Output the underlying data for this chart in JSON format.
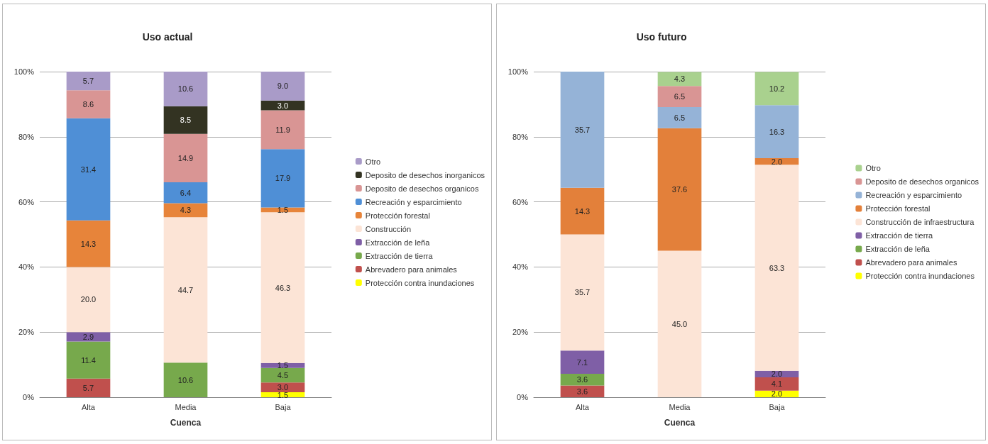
{
  "chart_data": [
    {
      "type": "bar",
      "title": "Uso actual",
      "xlabel": "Cuenca",
      "categories": [
        "Alta",
        "Media",
        "Baja"
      ],
      "stacked": true,
      "ylim": [
        0,
        100
      ],
      "yticks": [
        {
          "value": 0,
          "label": "0%"
        },
        {
          "value": 20,
          "label": "20%"
        },
        {
          "value": 40,
          "label": "40%"
        },
        {
          "value": 60,
          "label": "60%"
        },
        {
          "value": 80,
          "label": "80%"
        },
        {
          "value": 100,
          "label": "100%"
        }
      ],
      "grid": "y",
      "legend": "right",
      "series": [
        {
          "name": "Protección contra inundaciones",
          "color": "#ffff00",
          "values": [
            null,
            null,
            1.5
          ],
          "value_labels": [
            null,
            null,
            "1.5"
          ]
        },
        {
          "name": "Abrevadero para animales",
          "color": "#c0504d",
          "values": [
            5.7,
            null,
            3.0
          ],
          "value_labels": [
            "5.7",
            null,
            "3.0"
          ]
        },
        {
          "name": "Extracción de tierra",
          "color": "#77a94c",
          "values": [
            11.4,
            10.6,
            4.5
          ],
          "value_labels": [
            "11.4",
            "10.6",
            "4.5"
          ]
        },
        {
          "name": "Extracción de leña",
          "color": "#7f5fa6",
          "values": [
            2.9,
            null,
            1.5
          ],
          "value_labels": [
            "2.9",
            null,
            "1.5"
          ]
        },
        {
          "name": "Construcción",
          "color": "#fce4d6",
          "values": [
            20.0,
            44.7,
            46.3
          ],
          "value_labels": [
            "20.0",
            "44.7",
            "46.3"
          ]
        },
        {
          "name": "Protección forestal",
          "color": "#e7843a",
          "values": [
            14.3,
            4.3,
            1.5
          ],
          "value_labels": [
            "14.3",
            "4.3",
            "1.5"
          ]
        },
        {
          "name": "Recreación y esparcimiento",
          "color": "#4f8fd6",
          "values": [
            31.4,
            6.4,
            17.9
          ],
          "value_labels": [
            "31.4",
            "6.4",
            "17.9"
          ]
        },
        {
          "name": "Deposito de desechos organicos",
          "color": "#d99594",
          "values": [
            8.6,
            14.9,
            11.9
          ],
          "value_labels": [
            "8.6",
            "14.9",
            "11.9"
          ]
        },
        {
          "name": "Deposito de desechos inorganicos",
          "color": "#333322",
          "values": [
            null,
            8.5,
            3.0
          ],
          "value_labels": [
            null,
            "8.5",
            "3.0"
          ]
        },
        {
          "name": "Otro",
          "color": "#a99bc8",
          "values": [
            5.7,
            10.6,
            9.0
          ],
          "value_labels": [
            "5.7",
            "10.6",
            "9.0"
          ]
        }
      ]
    },
    {
      "type": "bar",
      "title": "Uso futuro",
      "xlabel": "Cuenca",
      "categories": [
        "Alta",
        "Media",
        "Baja"
      ],
      "stacked": true,
      "ylim": [
        0,
        100
      ],
      "yticks": [
        {
          "value": 0,
          "label": "0%"
        },
        {
          "value": 20,
          "label": "20%"
        },
        {
          "value": 40,
          "label": "40%"
        },
        {
          "value": 60,
          "label": "60%"
        },
        {
          "value": 80,
          "label": "80%"
        },
        {
          "value": 100,
          "label": "100%"
        }
      ],
      "grid": "y",
      "legend": "right",
      "series": [
        {
          "name": "Protección contra inundaciones",
          "color": "#ffff00",
          "values": [
            null,
            null,
            2.0
          ],
          "value_labels": [
            null,
            null,
            "2.0"
          ]
        },
        {
          "name": "Abrevadero para animales",
          "color": "#c0504d",
          "values": [
            3.6,
            null,
            4.1
          ],
          "value_labels": [
            "3.6",
            null,
            "4.1"
          ]
        },
        {
          "name": "Extracción de leña",
          "color": "#77a94c",
          "values": [
            3.6,
            null,
            null
          ],
          "value_labels": [
            "3.6",
            null,
            null
          ]
        },
        {
          "name": "Extracción de tierra",
          "color": "#7f5fa6",
          "values": [
            7.1,
            null,
            2.0
          ],
          "value_labels": [
            "7.1",
            null,
            "2.0"
          ]
        },
        {
          "name": "Construcción de infraestructura",
          "color": "#fce4d6",
          "values": [
            35.7,
            45.0,
            63.3
          ],
          "value_labels": [
            "35.7",
            "45.0",
            "63.3"
          ]
        },
        {
          "name": "Protección forestal",
          "color": "#e3803a",
          "values": [
            14.3,
            37.6,
            2.0
          ],
          "value_labels": [
            "14.3",
            "37.6",
            "2.0"
          ]
        },
        {
          "name": "Recreación y esparcimiento",
          "color": "#95b3d7",
          "values": [
            35.7,
            6.5,
            16.3
          ],
          "value_labels": [
            "35.7",
            "6.5",
            "16.3"
          ]
        },
        {
          "name": "Deposito de desechos organicos",
          "color": "#d99594",
          "values": [
            null,
            6.5,
            null
          ],
          "value_labels": [
            null,
            "6.5",
            null
          ]
        },
        {
          "name": "Otro",
          "color": "#a9d18e",
          "values": [
            null,
            4.3,
            10.2
          ],
          "value_labels": [
            null,
            "4.3",
            "10.2"
          ]
        }
      ]
    }
  ]
}
